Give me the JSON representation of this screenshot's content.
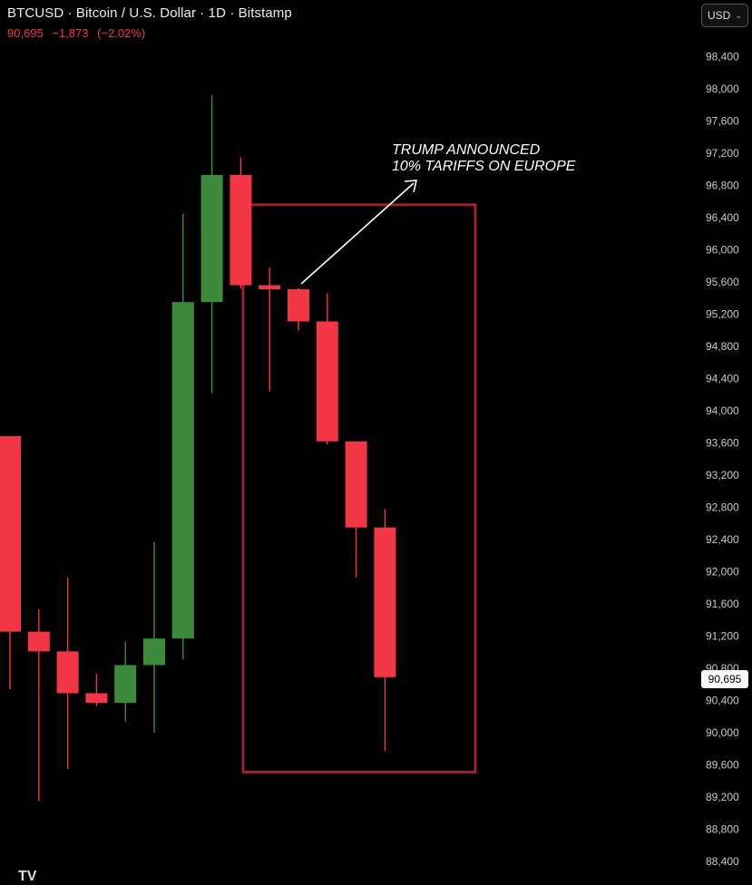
{
  "header": {
    "title": "BTCUSD · Bitcoin / U.S. Dollar · 1D · Bitstamp",
    "last": "90,695",
    "change": "−1,873",
    "change_pct": "(−2.02%)"
  },
  "currency_selector": {
    "label": "USD",
    "icon": "chevron-down-icon"
  },
  "logo_text": "TV",
  "colors": {
    "up": "#3d8a3d",
    "down": "#f23645",
    "box": "#9b2230",
    "background": "#000000"
  },
  "chart_data": {
    "type": "candlestick",
    "symbol": "BTCUSD",
    "interval": "1D",
    "exchange": "Bitstamp",
    "ylim": [
      88300,
      98800
    ],
    "y_ticks": [
      "98,400",
      "98,000",
      "97,600",
      "97,200",
      "96,800",
      "96,400",
      "96,000",
      "95,600",
      "95,200",
      "94,800",
      "94,400",
      "94,000",
      "93,600",
      "93,200",
      "92,800",
      "92,400",
      "92,000",
      "91,600",
      "91,200",
      "90,800",
      "90,400",
      "90,000",
      "89,600",
      "89,200",
      "88,800",
      "88,400"
    ],
    "last_price_label": "90,695",
    "candles": [
      {
        "open": 93685,
        "high": 93685,
        "close": 91255,
        "low": 90540
      },
      {
        "open": 91255,
        "high": 91530,
        "close": 91010,
        "low": 89150
      },
      {
        "open": 91010,
        "high": 91930,
        "close": 90490,
        "low": 89550
      },
      {
        "open": 90490,
        "high": 90730,
        "close": 90370,
        "low": 90330
      },
      {
        "open": 90370,
        "high": 91130,
        "close": 90840,
        "low": 90140
      },
      {
        "open": 90840,
        "high": 92370,
        "close": 91170,
        "low": 90000
      },
      {
        "open": 91170,
        "high": 96450,
        "close": 95350,
        "low": 90910
      },
      {
        "open": 95350,
        "high": 97920,
        "close": 96930,
        "low": 94220
      },
      {
        "open": 96930,
        "high": 97150,
        "close": 95560,
        "low": 95520
      },
      {
        "open": 95560,
        "high": 95780,
        "close": 95510,
        "low": 94240
      },
      {
        "open": 95510,
        "high": 95520,
        "close": 95110,
        "low": 95000
      },
      {
        "open": 95110,
        "high": 95460,
        "close": 93620,
        "low": 93580
      },
      {
        "open": 93620,
        "high": 93620,
        "close": 92550,
        "low": 91930
      },
      {
        "open": 92550,
        "high": 92780,
        "close": 90690,
        "low": 89770
      }
    ],
    "annotation": {
      "text_line1": "TRUMP ANNOUNCED",
      "text_line2": "10% TARIFFS ON EUROPE"
    },
    "highlight_box": {
      "from_candle": 8,
      "to_candle": 13,
      "price_top": 96560,
      "price_bottom": 89510
    }
  }
}
